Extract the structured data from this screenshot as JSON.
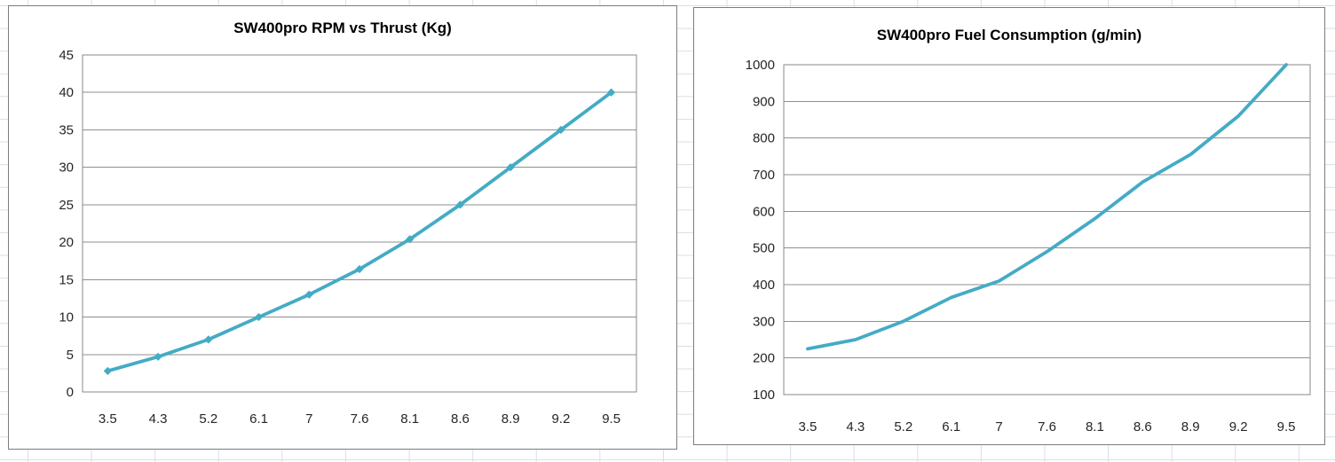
{
  "worksheet": {
    "background_color": "#FFFFFF",
    "gridline_color": "#D8DEE9"
  },
  "colors": {
    "series_line": "#44ABC5",
    "plot_border": "#898989",
    "plot_gridline": "#8F8F8F",
    "chart_border": "#7C7C7C",
    "tick_text": "#262626",
    "title_text": "#000000"
  },
  "chart_data": [
    {
      "type": "line",
      "title": "SW400pro RPM vs Thrust (Kg)",
      "categories": [
        "3.5",
        "4.3",
        "5.2",
        "6.1",
        "7",
        "7.6",
        "8.1",
        "8.6",
        "8.9",
        "9.2",
        "9.5"
      ],
      "values": [
        2.8,
        4.7,
        7,
        10,
        13,
        16.4,
        20.4,
        25,
        30,
        35,
        40
      ],
      "ylim": [
        0,
        45
      ],
      "ystep": 5,
      "y_ticks": [
        "45",
        "40",
        "35",
        "30",
        "25",
        "20",
        "15",
        "10",
        "5",
        "0"
      ],
      "line_color": "#44ABC5",
      "marker": "diamond",
      "grid": true,
      "legend": "none",
      "xlabel": "",
      "ylabel": ""
    },
    {
      "type": "line",
      "title": "SW400pro Fuel Consumption (g/min)",
      "categories": [
        "3.5",
        "4.3",
        "5.2",
        "6.1",
        "7",
        "7.6",
        "8.1",
        "8.6",
        "8.9",
        "9.2",
        "9.5"
      ],
      "values": [
        225,
        250,
        300,
        365,
        410,
        490,
        580,
        680,
        755,
        860,
        1000
      ],
      "ylim": [
        100,
        1000
      ],
      "ystep": 100,
      "y_ticks": [
        "1000",
        "900",
        "800",
        "700",
        "600",
        "500",
        "400",
        "300",
        "200",
        "100"
      ],
      "line_color": "#44ABC5",
      "marker": "none",
      "grid": true,
      "legend": "none",
      "xlabel": "",
      "ylabel": ""
    }
  ]
}
